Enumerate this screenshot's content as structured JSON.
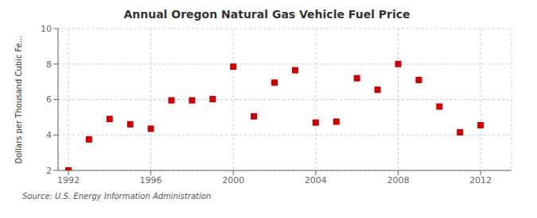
{
  "chart_data": {
    "type": "scatter",
    "title": "Annual Oregon Natural Gas Vehicle Fuel Price",
    "ylabel": "Dollars per Thousand Cubic Fe...",
    "source": "Source: U.S. Energy Information Administration",
    "x": [
      1992,
      1993,
      1994,
      1995,
      1996,
      1997,
      1998,
      1999,
      2000,
      2001,
      2002,
      2003,
      2004,
      2005,
      2006,
      2007,
      2008,
      2009,
      2010,
      2011,
      2012
    ],
    "values": [
      2.0,
      3.75,
      4.9,
      4.6,
      4.35,
      5.95,
      5.95,
      6.02,
      7.85,
      5.05,
      6.95,
      7.65,
      4.7,
      4.75,
      7.2,
      6.55,
      8.0,
      7.1,
      5.6,
      4.15,
      4.55
    ],
    "color": "#cc0000",
    "marker": "square",
    "xlim": [
      1991.5,
      2013.5
    ],
    "xticks": [
      1992,
      1996,
      2000,
      2004,
      2008,
      2012
    ],
    "ylim": [
      2,
      10
    ],
    "yticks": [
      2,
      4,
      6,
      8,
      10
    ],
    "grid": true
  }
}
